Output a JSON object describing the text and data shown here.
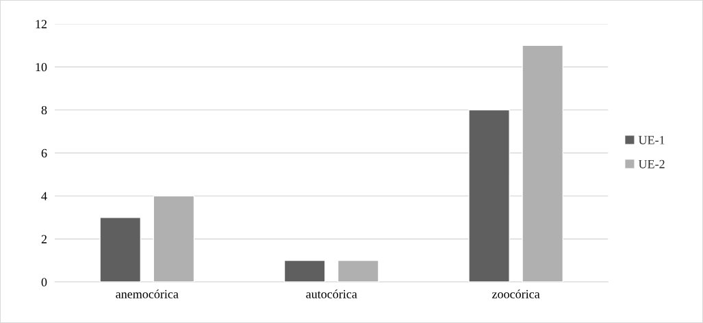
{
  "chart_data": {
    "type": "bar",
    "categories": [
      "anemocórica",
      "autocórica",
      "zoocórica"
    ],
    "series": [
      {
        "name": "UE-1",
        "color": "#5f5f5f",
        "values": [
          3,
          1,
          8
        ]
      },
      {
        "name": "UE-2",
        "color": "#b0b0b0",
        "values": [
          4,
          1,
          11
        ]
      }
    ],
    "ylim": [
      0,
      12
    ],
    "yticks": [
      0,
      2,
      4,
      6,
      8,
      10,
      12
    ],
    "grid": "y",
    "legend": "right"
  }
}
